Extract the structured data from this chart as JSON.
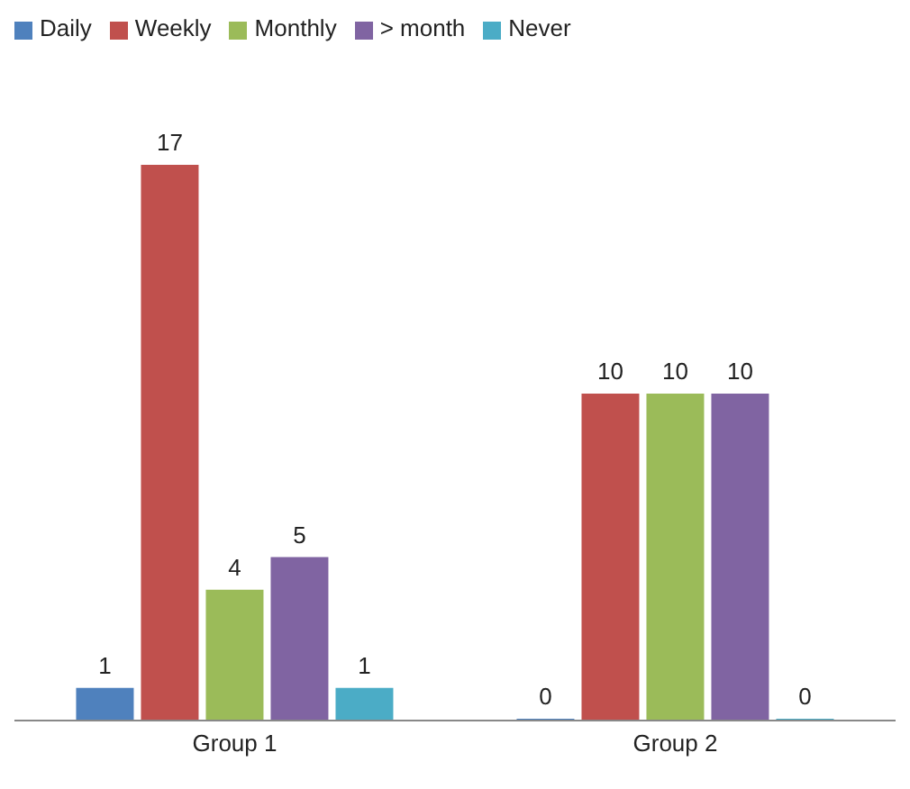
{
  "chart_data": {
    "type": "bar",
    "categories": [
      "Group 1",
      "Group 2"
    ],
    "series": [
      {
        "name": "Daily",
        "color": "#4f81bd",
        "values": [
          1,
          0
        ]
      },
      {
        "name": "Weekly",
        "color": "#c0504d",
        "values": [
          17,
          10
        ]
      },
      {
        "name": "Monthly",
        "color": "#9bbb59",
        "values": [
          4,
          10
        ]
      },
      {
        "name": "> month",
        "color": "#8064a2",
        "values": [
          5,
          10
        ]
      },
      {
        "name": "Never",
        "color": "#4bacc6",
        "values": [
          1,
          0
        ]
      }
    ],
    "data_labels": true,
    "legend": "top left",
    "grid": false,
    "tick_labels": "x"
  }
}
